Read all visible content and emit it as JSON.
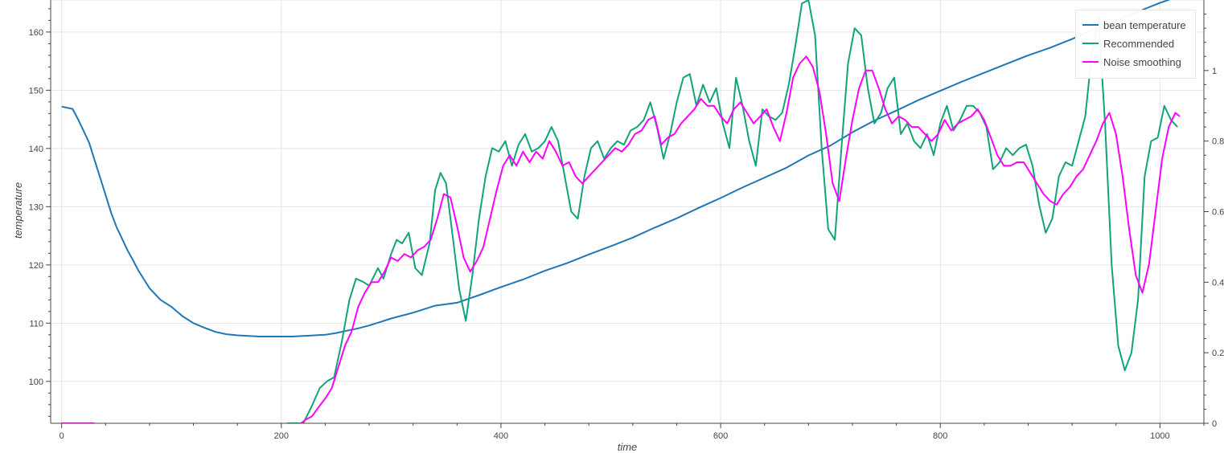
{
  "chart_data": {
    "type": "line",
    "xlabel": "time",
    "ylabel": "temperature",
    "xlim": [
      -10,
      1040
    ],
    "ylim": [
      92.8,
      165.5
    ],
    "y2lim": [
      0,
      1.2
    ],
    "x_ticks": [
      0,
      200,
      400,
      600,
      800,
      1000
    ],
    "y_ticks": [
      100,
      110,
      120,
      130,
      140,
      150,
      160
    ],
    "y2_ticks": [
      0,
      0.2,
      0.4,
      0.6,
      0.8,
      1
    ],
    "y2_tick_labels": [
      "0",
      "0.2",
      "0.4",
      "0.6",
      "0.8",
      "1"
    ],
    "grid": true,
    "legend_position": "top-right",
    "series": [
      {
        "name": "bean temperature",
        "color": "#1f77b4",
        "axis": "left",
        "x": [
          0,
          10,
          15,
          20,
          25,
          30,
          35,
          40,
          45,
          50,
          55,
          60,
          65,
          70,
          75,
          80,
          90,
          100,
          110,
          120,
          130,
          140,
          150,
          160,
          170,
          180,
          190,
          200,
          210,
          220,
          230,
          240,
          250,
          260,
          270,
          280,
          290,
          300,
          320,
          340,
          360,
          380,
          400,
          420,
          440,
          460,
          480,
          500,
          520,
          540,
          560,
          580,
          600,
          620,
          640,
          660,
          680,
          700,
          720,
          740,
          760,
          780,
          800,
          820,
          840,
          860,
          880,
          900,
          920,
          940,
          960,
          980,
          1000,
          1018
        ],
        "values": [
          147.2,
          146.8,
          145.0,
          143.0,
          141.0,
          138.0,
          135.0,
          132.0,
          129.0,
          126.5,
          124.5,
          122.5,
          120.8,
          119.0,
          117.5,
          116.0,
          114.0,
          112.8,
          111.2,
          110.0,
          109.2,
          108.5,
          108.1,
          107.9,
          107.8,
          107.7,
          107.7,
          107.7,
          107.7,
          107.8,
          107.9,
          108.0,
          108.3,
          108.7,
          109.1,
          109.6,
          110.2,
          110.8,
          111.8,
          113.0,
          113.5,
          114.8,
          116.2,
          117.5,
          119.0,
          120.3,
          121.8,
          123.2,
          124.7,
          126.4,
          128.0,
          129.8,
          131.5,
          133.3,
          135.0,
          136.7,
          138.8,
          140.5,
          142.8,
          144.8,
          146.5,
          148.3,
          149.9,
          151.5,
          153.0,
          154.5,
          156.0,
          157.3,
          158.8,
          160.5,
          162.0,
          163.5,
          165.0,
          166.2
        ]
      },
      {
        "name": "Recommended",
        "color": "#12a37a",
        "axis": "right",
        "x": [
          205,
          212,
          220,
          228,
          235,
          242,
          248,
          255,
          262,
          268,
          275,
          280,
          288,
          293,
          300,
          305,
          310,
          316,
          322,
          328,
          335,
          340,
          345,
          350,
          356,
          362,
          368,
          374,
          380,
          386,
          392,
          398,
          404,
          410,
          416,
          422,
          428,
          434,
          440,
          446,
          452,
          458,
          464,
          470,
          476,
          482,
          488,
          494,
          500,
          506,
          512,
          518,
          524,
          530,
          536,
          542,
          548,
          554,
          560,
          566,
          572,
          578,
          584,
          590,
          596,
          602,
          608,
          614,
          620,
          626,
          632,
          638,
          644,
          650,
          656,
          662,
          668,
          674,
          680,
          686,
          692,
          698,
          704,
          710,
          716,
          722,
          728,
          734,
          740,
          746,
          752,
          758,
          764,
          770,
          776,
          782,
          788,
          794,
          800,
          806,
          812,
          818,
          824,
          830,
          836,
          842,
          848,
          854,
          860,
          866,
          872,
          878,
          884,
          890,
          896,
          902,
          908,
          914,
          920,
          926,
          932,
          938,
          944,
          950,
          956,
          962,
          968,
          974,
          980,
          986,
          992,
          998,
          1004,
          1010,
          1016
        ],
        "values": [
          0.0,
          0.0,
          0.0,
          0.05,
          0.1,
          0.12,
          0.13,
          0.23,
          0.35,
          0.41,
          0.4,
          0.39,
          0.44,
          0.41,
          0.48,
          0.52,
          0.51,
          0.54,
          0.44,
          0.42,
          0.51,
          0.66,
          0.71,
          0.68,
          0.53,
          0.38,
          0.29,
          0.42,
          0.58,
          0.7,
          0.78,
          0.77,
          0.8,
          0.73,
          0.79,
          0.82,
          0.77,
          0.78,
          0.8,
          0.84,
          0.8,
          0.7,
          0.6,
          0.58,
          0.7,
          0.78,
          0.8,
          0.75,
          0.78,
          0.8,
          0.79,
          0.83,
          0.84,
          0.86,
          0.91,
          0.84,
          0.75,
          0.82,
          0.91,
          0.98,
          0.99,
          0.9,
          0.96,
          0.91,
          0.95,
          0.85,
          0.78,
          0.98,
          0.9,
          0.8,
          0.73,
          0.89,
          0.87,
          0.86,
          0.88,
          0.96,
          1.07,
          1.19,
          1.2,
          1.1,
          0.78,
          0.55,
          0.52,
          0.78,
          1.02,
          1.12,
          1.1,
          0.95,
          0.85,
          0.88,
          0.95,
          0.98,
          0.82,
          0.85,
          0.8,
          0.78,
          0.82,
          0.76,
          0.85,
          0.9,
          0.83,
          0.86,
          0.9,
          0.9,
          0.88,
          0.84,
          0.72,
          0.74,
          0.78,
          0.76,
          0.78,
          0.79,
          0.73,
          0.62,
          0.54,
          0.58,
          0.7,
          0.74,
          0.73,
          0.8,
          0.87,
          1.05,
          1.15,
          0.85,
          0.45,
          0.22,
          0.15,
          0.2,
          0.35,
          0.7,
          0.8,
          0.81,
          0.9,
          0.86,
          0.84
        ]
      },
      {
        "name": "Noise smoothing",
        "color": "#ff00ff",
        "axis": "right",
        "x": [
          218,
          222,
          228,
          235,
          240,
          246,
          252,
          258,
          264,
          270,
          276,
          282,
          288,
          294,
          300,
          306,
          312,
          318,
          324,
          330,
          336,
          342,
          348,
          354,
          360,
          366,
          372,
          378,
          384,
          390,
          396,
          402,
          408,
          414,
          420,
          426,
          432,
          438,
          444,
          450,
          456,
          462,
          468,
          474,
          480,
          486,
          492,
          498,
          504,
          510,
          516,
          522,
          528,
          534,
          540,
          546,
          552,
          558,
          564,
          570,
          576,
          582,
          588,
          594,
          600,
          606,
          612,
          618,
          624,
          630,
          636,
          642,
          648,
          654,
          660,
          666,
          672,
          678,
          684,
          690,
          696,
          702,
          708,
          714,
          720,
          726,
          732,
          738,
          744,
          750,
          756,
          762,
          768,
          774,
          780,
          786,
          792,
          798,
          804,
          810,
          816,
          822,
          828,
          834,
          840,
          846,
          852,
          858,
          864,
          870,
          876,
          882,
          888,
          894,
          900,
          906,
          912,
          918,
          924,
          930,
          936,
          942,
          948,
          954,
          960,
          966,
          972,
          978,
          984,
          990,
          996,
          1002,
          1008,
          1014,
          1018
        ],
        "values": [
          0.0,
          0.01,
          0.02,
          0.05,
          0.07,
          0.1,
          0.16,
          0.22,
          0.26,
          0.33,
          0.37,
          0.4,
          0.4,
          0.43,
          0.47,
          0.46,
          0.48,
          0.47,
          0.49,
          0.5,
          0.52,
          0.58,
          0.65,
          0.64,
          0.56,
          0.47,
          0.43,
          0.46,
          0.5,
          0.58,
          0.66,
          0.73,
          0.76,
          0.73,
          0.77,
          0.74,
          0.77,
          0.75,
          0.8,
          0.77,
          0.73,
          0.74,
          0.7,
          0.68,
          0.7,
          0.72,
          0.74,
          0.76,
          0.78,
          0.77,
          0.79,
          0.82,
          0.83,
          0.86,
          0.87,
          0.79,
          0.81,
          0.82,
          0.85,
          0.87,
          0.89,
          0.92,
          0.9,
          0.9,
          0.87,
          0.85,
          0.89,
          0.91,
          0.88,
          0.85,
          0.87,
          0.89,
          0.84,
          0.8,
          0.88,
          0.98,
          1.02,
          1.04,
          1.01,
          0.94,
          0.82,
          0.68,
          0.63,
          0.75,
          0.86,
          0.95,
          1.0,
          1.0,
          0.95,
          0.89,
          0.85,
          0.87,
          0.86,
          0.84,
          0.84,
          0.82,
          0.8,
          0.82,
          0.86,
          0.83,
          0.85,
          0.86,
          0.87,
          0.89,
          0.86,
          0.81,
          0.76,
          0.73,
          0.73,
          0.74,
          0.74,
          0.71,
          0.68,
          0.65,
          0.63,
          0.62,
          0.65,
          0.67,
          0.7,
          0.72,
          0.76,
          0.8,
          0.85,
          0.88,
          0.82,
          0.7,
          0.55,
          0.42,
          0.37,
          0.45,
          0.6,
          0.75,
          0.84,
          0.88,
          0.87
        ]
      },
      {
        "name": "",
        "color": "#ff00ff",
        "axis": "right",
        "x": [
          0,
          30
        ],
        "values": [
          0.0,
          0.0
        ]
      }
    ]
  },
  "legend": {
    "items": [
      {
        "label": "bean temperature",
        "color": "#1f77b4"
      },
      {
        "label": "Recommended",
        "color": "#12a37a"
      },
      {
        "label": "Noise smoothing",
        "color": "#ff00ff"
      }
    ]
  }
}
